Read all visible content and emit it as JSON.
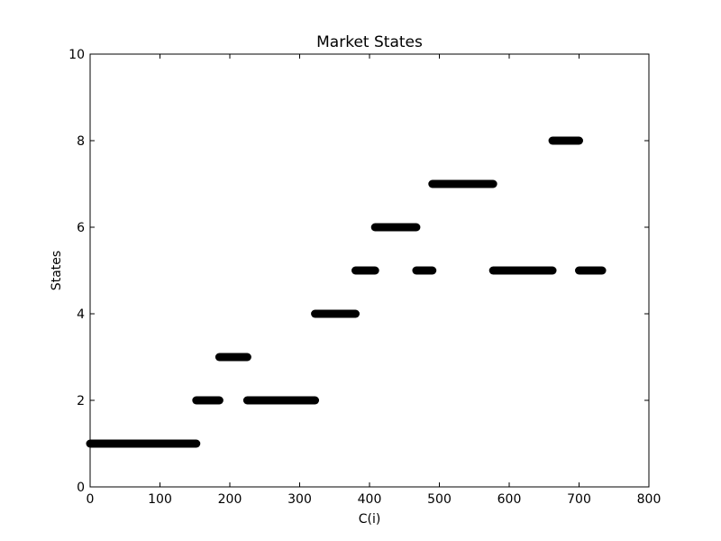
{
  "chart_data": {
    "type": "scatter",
    "title": "Market States",
    "xlabel": "C(i)",
    "ylabel": "States",
    "xlim": [
      0,
      800
    ],
    "ylim": [
      0,
      10
    ],
    "x_ticks": [
      0,
      100,
      200,
      300,
      400,
      500,
      600,
      700,
      800
    ],
    "y_ticks": [
      0,
      2,
      4,
      6,
      8,
      10
    ],
    "grid": false,
    "legend": "none",
    "marker_color": "#000000",
    "segments": [
      {
        "state": 1,
        "x_start": 0,
        "x_end": 152
      },
      {
        "state": 2,
        "x_start": 152,
        "x_end": 185
      },
      {
        "state": 3,
        "x_start": 185,
        "x_end": 225
      },
      {
        "state": 2,
        "x_start": 225,
        "x_end": 322
      },
      {
        "state": 4,
        "x_start": 322,
        "x_end": 380
      },
      {
        "state": 5,
        "x_start": 380,
        "x_end": 408
      },
      {
        "state": 6,
        "x_start": 408,
        "x_end": 467
      },
      {
        "state": 5,
        "x_start": 467,
        "x_end": 490
      },
      {
        "state": 7,
        "x_start": 490,
        "x_end": 577
      },
      {
        "state": 5,
        "x_start": 577,
        "x_end": 662
      },
      {
        "state": 8,
        "x_start": 662,
        "x_end": 700
      },
      {
        "state": 5,
        "x_start": 700,
        "x_end": 733
      }
    ]
  }
}
